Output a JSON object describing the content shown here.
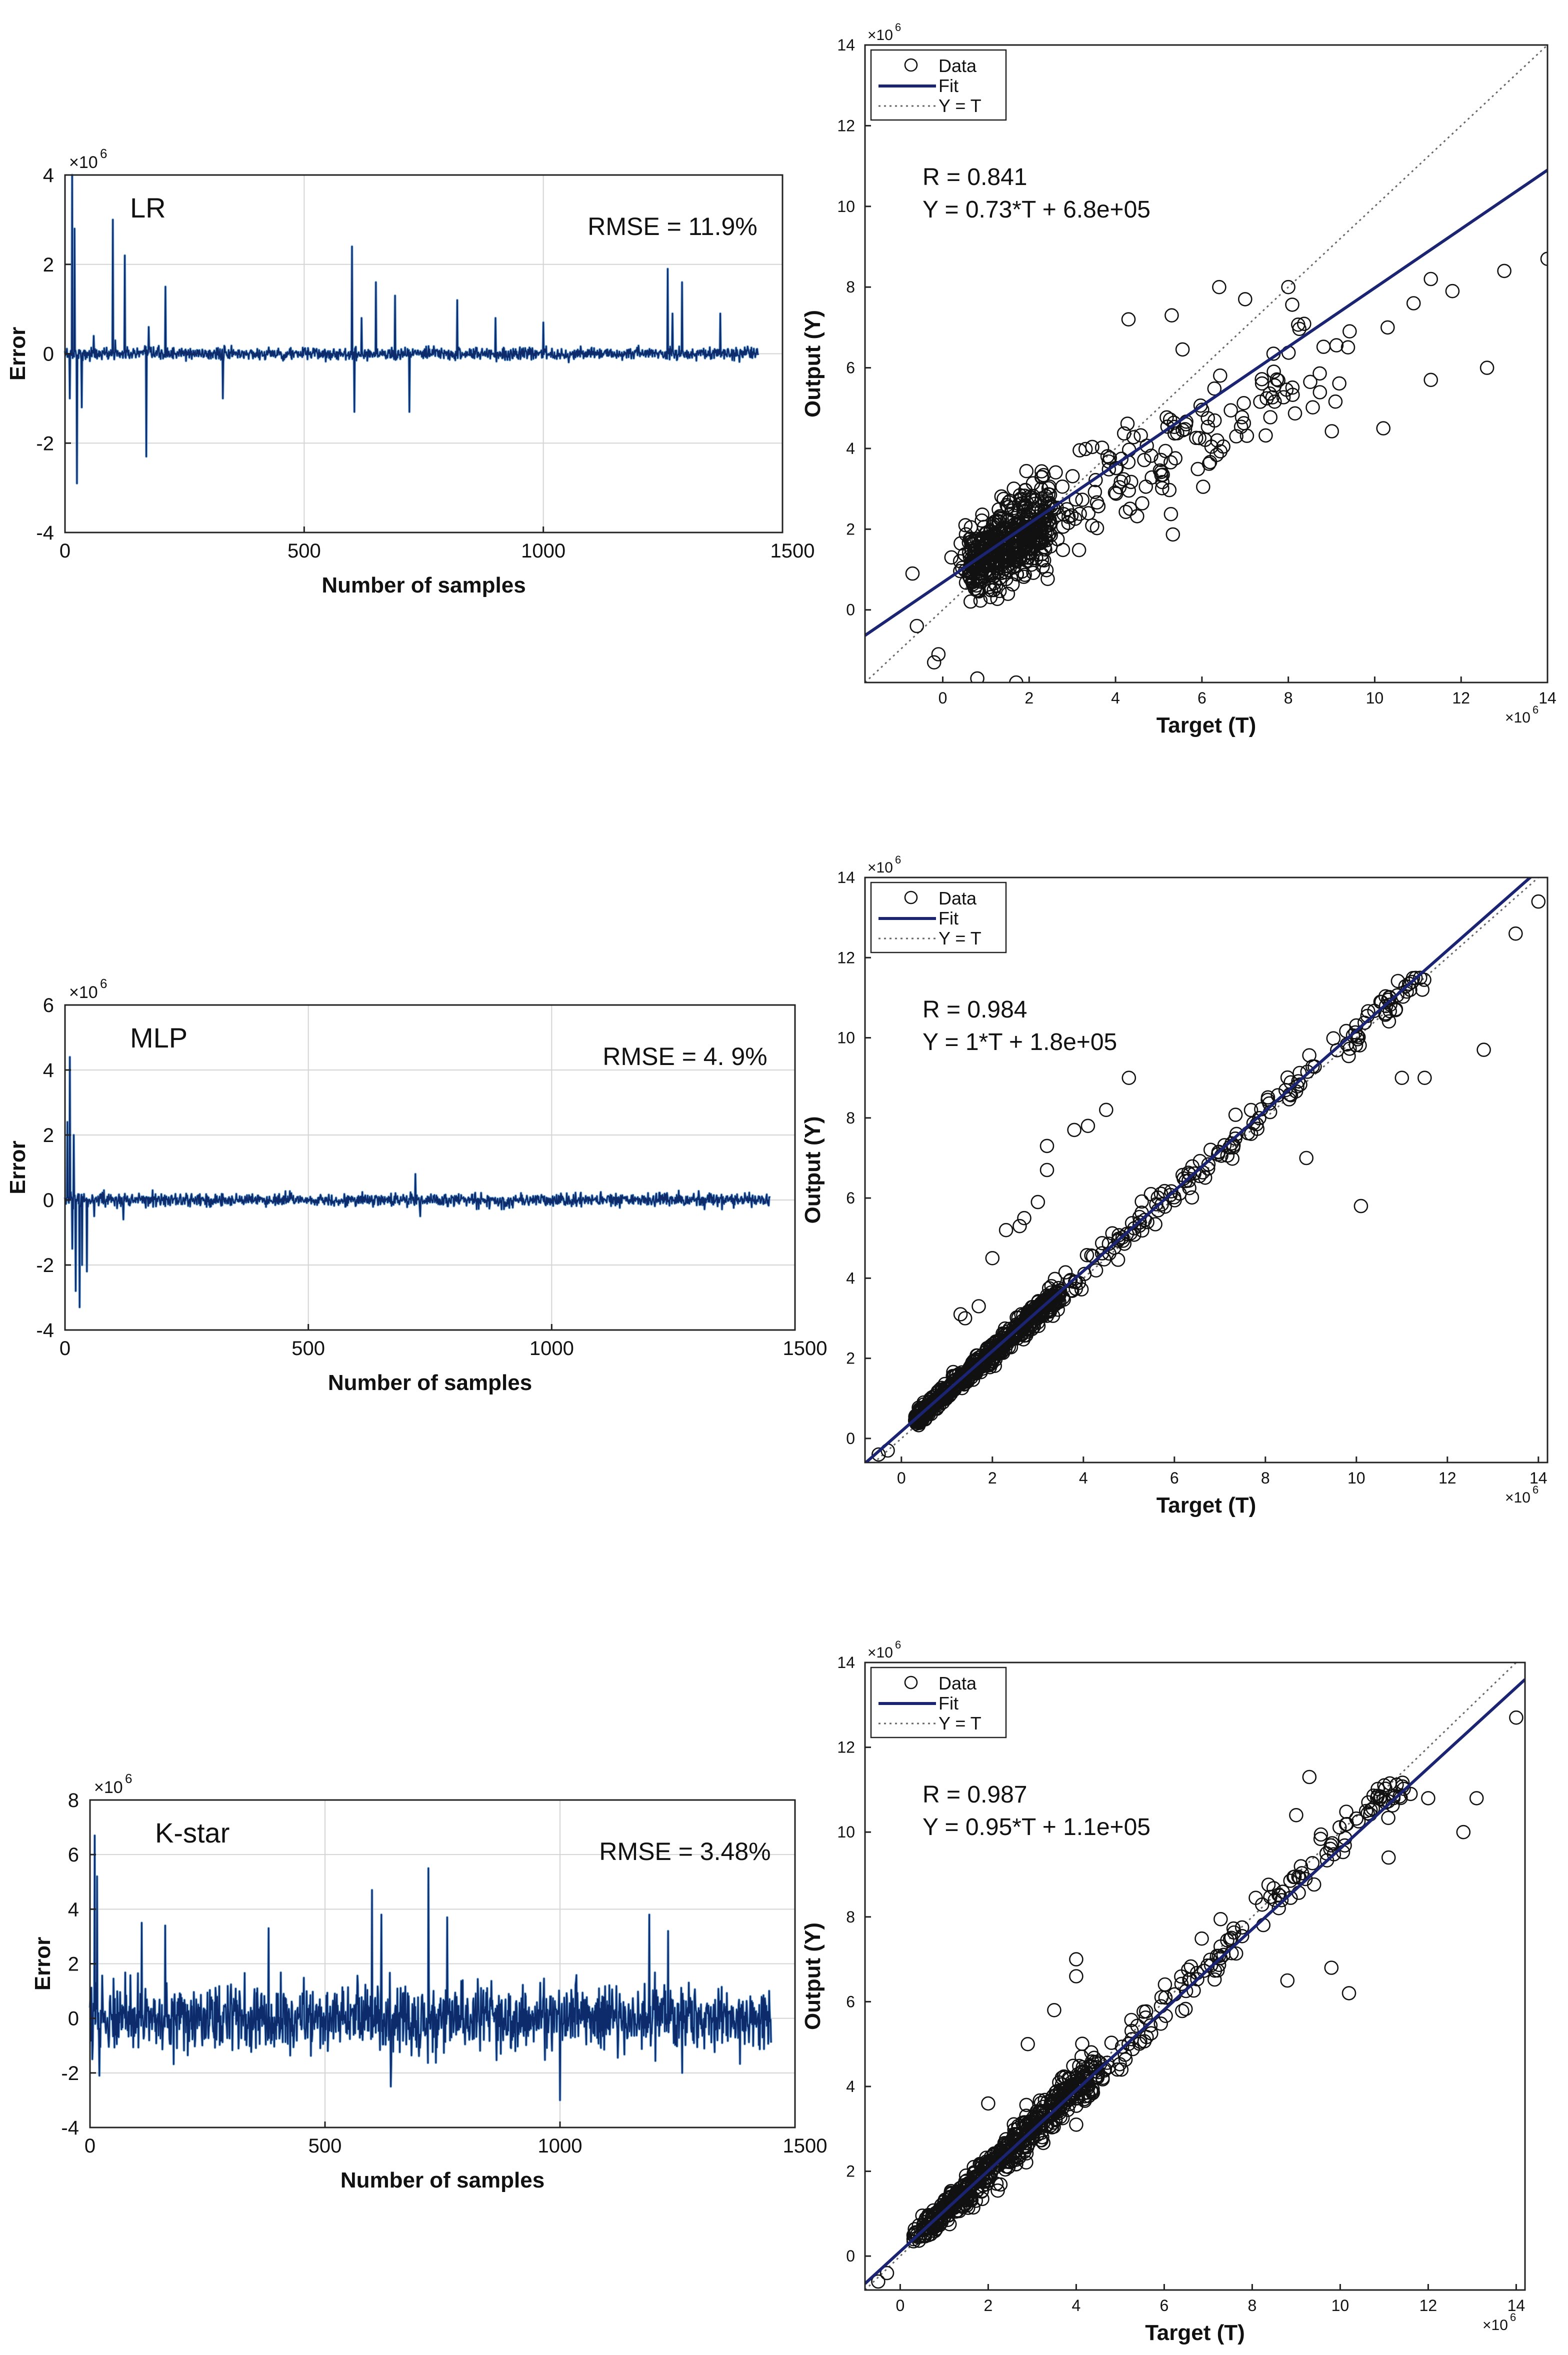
{
  "figure": {
    "description_note": "Six-panel figure: error time series and regression scatter plots for LR, MLP and K-star"
  },
  "chart_data": [
    {
      "id": "lr-error",
      "type": "line",
      "title": "LR",
      "annotation": "RMSE = 11.9%",
      "xlabel": "Number of samples",
      "ylabel": "Error",
      "exponent": "6",
      "xlim": [
        0,
        1500
      ],
      "ylim": [
        -4,
        4
      ],
      "xticks": [
        0,
        500,
        1000,
        1500
      ],
      "yticks": [
        -4,
        -2,
        0,
        2,
        4
      ],
      "grid": true,
      "series": [
        {
          "name": "Error",
          "color": "#0d2a6b",
          "n": 1450,
          "noise_amplitude": 0.12,
          "x": [
            10,
            15,
            20,
            25,
            35,
            60,
            100,
            105,
            125,
            170,
            175,
            210,
            330,
            600,
            605,
            620,
            650,
            690,
            720,
            820,
            900,
            1000,
            1260,
            1270,
            1290,
            1370
          ],
          "y": [
            -1.0,
            4.0,
            2.8,
            -2.9,
            -1.2,
            0.4,
            3.0,
            0.3,
            2.2,
            -2.3,
            0.6,
            1.5,
            -1.0,
            2.4,
            -1.3,
            0.8,
            1.6,
            1.3,
            -1.3,
            1.2,
            0.8,
            0.7,
            1.9,
            0.9,
            1.6,
            0.9
          ]
        }
      ]
    },
    {
      "id": "lr-regression",
      "type": "scatter",
      "xlabel": "Target (T)",
      "ylabel": "Output (Y)",
      "exponent": "6",
      "x_exponent": "6",
      "xlim": [
        -1.8,
        14
      ],
      "ylim": [
        -1.8,
        14
      ],
      "xticks": [
        0,
        2,
        4,
        6,
        8,
        10,
        12,
        14
      ],
      "yticks": [
        0,
        2,
        4,
        6,
        8,
        10,
        12,
        14
      ],
      "legend": [
        "Data",
        "Fit",
        "Y = T"
      ],
      "legend_position": "top-left",
      "annotations": [
        "R = 0.841",
        "Y = 0.73*T + 6.8e+05"
      ],
      "fit": {
        "slope": 0.73,
        "intercept": 0.68
      },
      "cloud": {
        "n": 620,
        "x_range": [
          0.4,
          9.5
        ],
        "slope": 0.62,
        "intercept": 0.7,
        "spread": 0.75,
        "dense_x": [
          0.6,
          2.5
        ]
      },
      "outliers": [
        [
          6.4,
          8.0
        ],
        [
          7.0,
          7.7
        ],
        [
          8.0,
          8.0
        ],
        [
          11.3,
          8.2
        ],
        [
          11.8,
          7.9
        ],
        [
          13.0,
          8.4
        ],
        [
          14.0,
          8.7
        ],
        [
          12.6,
          6.0
        ],
        [
          11.3,
          5.7
        ],
        [
          10.2,
          4.5
        ],
        [
          -0.6,
          -0.4
        ],
        [
          -0.1,
          -1.1
        ],
        [
          -0.2,
          -1.3
        ],
        [
          0.8,
          -1.7
        ],
        [
          1.7,
          -1.8
        ],
        [
          0.2,
          1.3
        ],
        [
          -0.7,
          0.9
        ],
        [
          4.3,
          7.2
        ],
        [
          5.3,
          7.3
        ],
        [
          10.3,
          7.0
        ],
        [
          10.9,
          7.6
        ]
      ]
    },
    {
      "id": "mlp-error",
      "type": "line",
      "title": "MLP",
      "annotation": "RMSE = 4. 9%",
      "xlabel": "Number of samples",
      "ylabel": "Error",
      "exponent": "6",
      "xlim": [
        0,
        1500
      ],
      "ylim": [
        -4,
        6
      ],
      "xticks": [
        0,
        500,
        1000,
        1500
      ],
      "yticks": [
        -4,
        -2,
        0,
        2,
        4,
        6
      ],
      "grid": true,
      "series": [
        {
          "name": "Error",
          "color": "#0d2a6b",
          "n": 1450,
          "noise_amplitude": 0.18,
          "x": [
            5,
            10,
            15,
            18,
            22,
            30,
            35,
            45,
            60,
            80,
            120,
            180,
            720,
            730
          ],
          "y": [
            2.4,
            4.4,
            -1.5,
            2.0,
            -2.8,
            -3.3,
            -2.0,
            -2.2,
            -0.5,
            0.3,
            -0.6,
            0.3,
            0.8,
            -0.5
          ]
        }
      ]
    },
    {
      "id": "mlp-regression",
      "type": "scatter",
      "xlabel": "Target (T)",
      "ylabel": "Output (Y)",
      "exponent": "6",
      "x_exponent": "6",
      "xlim": [
        -0.8,
        14.2
      ],
      "ylim": [
        -0.6,
        14
      ],
      "xticks": [
        0,
        2,
        4,
        6,
        8,
        10,
        12,
        14
      ],
      "yticks": [
        0,
        2,
        4,
        6,
        8,
        10,
        12,
        14
      ],
      "legend": [
        "Data",
        "Fit",
        "Y = T"
      ],
      "legend_position": "top-left",
      "annotations": [
        "R = 0.984",
        "Y = 1*T + 1.8e+05"
      ],
      "fit": {
        "slope": 1.0,
        "intercept": 0.18
      },
      "cloud": {
        "n": 700,
        "x_range": [
          0.3,
          11.5
        ],
        "slope": 1.0,
        "intercept": 0.15,
        "spread": 0.18,
        "dense_x": [
          0.3,
          3.5
        ]
      },
      "outliers": [
        [
          14.0,
          13.4
        ],
        [
          13.5,
          12.6
        ],
        [
          12.8,
          9.7
        ],
        [
          11.5,
          9.0
        ],
        [
          11.0,
          9.0
        ],
        [
          10.1,
          5.8
        ],
        [
          8.9,
          7.0
        ],
        [
          5.0,
          9.0
        ],
        [
          4.5,
          8.2
        ],
        [
          4.1,
          7.8
        ],
        [
          3.8,
          7.7
        ],
        [
          3.2,
          7.3
        ],
        [
          3.2,
          6.7
        ],
        [
          3.0,
          5.9
        ],
        [
          2.7,
          5.5
        ],
        [
          2.6,
          5.3
        ],
        [
          2.3,
          5.2
        ],
        [
          2.0,
          4.5
        ],
        [
          1.4,
          3.0
        ],
        [
          1.3,
          3.1
        ],
        [
          1.7,
          3.3
        ],
        [
          -0.5,
          -0.4
        ],
        [
          -0.3,
          -0.3
        ]
      ]
    },
    {
      "id": "kstar-error",
      "type": "line",
      "title": "K-star",
      "annotation": "RMSE = 3.48%",
      "xlabel": "Number of samples",
      "ylabel": "Error",
      "exponent": "6",
      "xlim": [
        0,
        1500
      ],
      "ylim": [
        -4,
        8
      ],
      "xticks": [
        0,
        500,
        1000,
        1500
      ],
      "yticks": [
        -4,
        -2,
        0,
        2,
        4,
        6,
        8
      ],
      "grid": true,
      "series": [
        {
          "name": "Error",
          "color": "#0d2a6b",
          "n": 1450,
          "noise_amplitude": 1.05,
          "x": [
            5,
            10,
            15,
            20,
            110,
            160,
            380,
            600,
            620,
            640,
            720,
            760,
            1000,
            1190,
            1230,
            1260
          ],
          "y": [
            -1.5,
            6.7,
            5.2,
            -2.1,
            3.5,
            3.4,
            3.3,
            4.7,
            3.8,
            -2.5,
            5.5,
            3.7,
            -3.0,
            3.8,
            3.2,
            -2.0
          ]
        }
      ]
    },
    {
      "id": "kstar-regression",
      "type": "scatter",
      "xlabel": "Target (T)",
      "ylabel": "Output (Y)",
      "exponent": "6",
      "x_exponent": "6",
      "xlim": [
        -0.8,
        14.2
      ],
      "ylim": [
        -0.8,
        14
      ],
      "xticks": [
        0,
        2,
        4,
        6,
        8,
        10,
        12,
        14
      ],
      "yticks": [
        0,
        2,
        4,
        6,
        8,
        10,
        12,
        14
      ],
      "legend": [
        "Data",
        "Fit",
        "Y = T"
      ],
      "legend_position": "top-left",
      "annotations": [
        "R = 0.987",
        "Y = 0.95*T + 1.1e+05"
      ],
      "fit": {
        "slope": 0.95,
        "intercept": 0.11
      },
      "cloud": {
        "n": 700,
        "x_range": [
          0.3,
          11.5
        ],
        "slope": 0.97,
        "intercept": 0.1,
        "spread": 0.28,
        "dense_x": [
          0.5,
          4.5
        ]
      },
      "outliers": [
        [
          14.0,
          12.7
        ],
        [
          13.1,
          10.8
        ],
        [
          12.8,
          10.0
        ],
        [
          12.0,
          10.8
        ],
        [
          11.6,
          10.9
        ],
        [
          11.1,
          9.4
        ],
        [
          10.2,
          6.2
        ],
        [
          9.8,
          6.8
        ],
        [
          8.8,
          6.5
        ],
        [
          9.0,
          10.4
        ],
        [
          9.3,
          11.3
        ],
        [
          4.0,
          7.0
        ],
        [
          4.0,
          6.6
        ],
        [
          3.5,
          5.8
        ],
        [
          2.9,
          5.0
        ],
        [
          2.0,
          3.6
        ],
        [
          4.0,
          3.1
        ],
        [
          -0.5,
          -0.6
        ],
        [
          -0.3,
          -0.4
        ]
      ]
    }
  ]
}
